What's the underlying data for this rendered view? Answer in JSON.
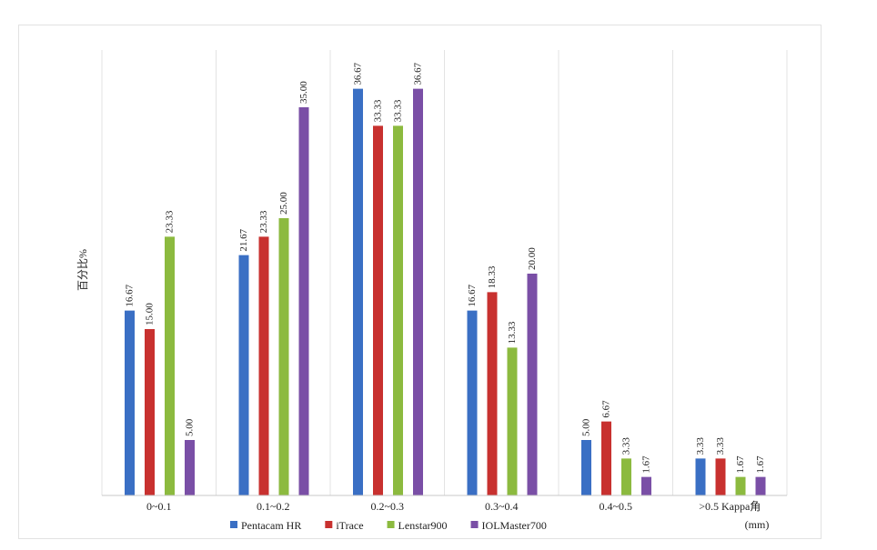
{
  "chart_data": {
    "type": "bar",
    "title": "",
    "xlabel": "",
    "ylabel": "百分比%",
    "x_unit": "(mm)",
    "ylim": [
      0,
      40
    ],
    "grid": "vertical-category-separators",
    "legend_position": "bottom",
    "categories": [
      "0~0.1",
      "0.1~0.2",
      "0.2~0.3",
      "0.3~0.4",
      "0.4~0.5",
      ">0.5 Kappa角"
    ],
    "series": [
      {
        "name": "Pentacam HR",
        "color": "#3a6fc4",
        "values": [
          16.67,
          21.67,
          36.67,
          16.67,
          5.0,
          3.33
        ],
        "labels": [
          "16.67",
          "21.67",
          "36.67",
          "16.67",
          "5.00",
          "3.33"
        ]
      },
      {
        "name": "iTrace",
        "color": "#c8312f",
        "values": [
          15.0,
          23.33,
          33.33,
          18.33,
          6.67,
          3.33
        ],
        "labels": [
          "15.00",
          "23.33",
          "33.33",
          "18.33",
          "6.67",
          "3.33"
        ]
      },
      {
        "name": "Lenstar900",
        "color": "#8cba3f",
        "values": [
          23.33,
          25.0,
          33.33,
          13.33,
          3.33,
          1.67
        ],
        "labels": [
          "23.33",
          "25.00",
          "33.33",
          "13.33",
          "3.33",
          "1.67"
        ]
      },
      {
        "name": "IOLMaster700",
        "color": "#7a4fa6",
        "values": [
          5.0,
          35.0,
          36.67,
          20.0,
          1.67,
          1.67
        ],
        "labels": [
          "5.00",
          "35.00",
          "36.67",
          "20.00",
          "1.67",
          "1.67"
        ]
      }
    ]
  }
}
